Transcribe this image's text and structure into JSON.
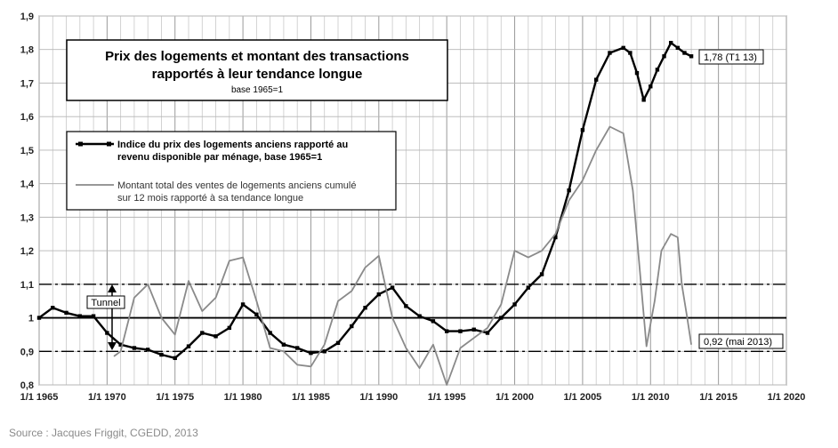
{
  "chart_data": {
    "type": "line",
    "title_line1": "Prix des logements et montant des transactions",
    "title_line2": "rapportés à leur tendance longue",
    "subtitle": "base 1965=1",
    "xlabel": "",
    "ylabel": "",
    "xlim": [
      1965,
      2020
    ],
    "ylim": [
      0.8,
      1.9
    ],
    "grid": true,
    "legend_position": "top-left",
    "x_ticks": [
      "1/1 1965",
      "1/1 1970",
      "1/1 1975",
      "1/1 1980",
      "1/1 1985",
      "1/1 1990",
      "1/1 1995",
      "1/1 2000",
      "1/1 2005",
      "1/1 2010",
      "1/1 2015",
      "1/1 2020"
    ],
    "y_ticks": [
      "0,8",
      "0,9",
      "1",
      "1,1",
      "1,2",
      "1,3",
      "1,4",
      "1,5",
      "1,6",
      "1,7",
      "1,8",
      "1,9"
    ],
    "reference_lines": [
      {
        "y": 1.0,
        "style": "solid"
      },
      {
        "y": 1.1,
        "style": "dash-dot"
      },
      {
        "y": 0.9,
        "style": "dash-dot"
      }
    ],
    "series": [
      {
        "name": "Indice du prix des logements anciens rapporté au revenu disponible par ménage, base 1965=1",
        "legend_line1": "Indice du prix des logements anciens rapporté au",
        "legend_line2": "revenu disponible par ménage, base 1965=1",
        "color": "#000000",
        "points": [
          [
            1965,
            1.0
          ],
          [
            1966,
            1.03
          ],
          [
            1967,
            1.015
          ],
          [
            1968,
            1.005
          ],
          [
            1969,
            1.005
          ],
          [
            1970,
            0.955
          ],
          [
            1971,
            0.92
          ],
          [
            1972,
            0.91
          ],
          [
            1973,
            0.905
          ],
          [
            1974,
            0.89
          ],
          [
            1975,
            0.88
          ],
          [
            1976,
            0.915
          ],
          [
            1977,
            0.955
          ],
          [
            1978,
            0.945
          ],
          [
            1979,
            0.97
          ],
          [
            1980,
            1.04
          ],
          [
            1981,
            1.01
          ],
          [
            1982,
            0.955
          ],
          [
            1983,
            0.92
          ],
          [
            1984,
            0.91
          ],
          [
            1985,
            0.895
          ],
          [
            1986,
            0.9
          ],
          [
            1987,
            0.925
          ],
          [
            1988,
            0.975
          ],
          [
            1989,
            1.03
          ],
          [
            1990,
            1.07
          ],
          [
            1991,
            1.09
          ],
          [
            1992,
            1.035
          ],
          [
            1993,
            1.005
          ],
          [
            1994,
            0.99
          ],
          [
            1995,
            0.96
          ],
          [
            1996,
            0.96
          ],
          [
            1997,
            0.965
          ],
          [
            1998,
            0.955
          ],
          [
            1999,
            1.0
          ],
          [
            2000,
            1.04
          ],
          [
            2001,
            1.09
          ],
          [
            2002,
            1.13
          ],
          [
            2003,
            1.24
          ],
          [
            2004,
            1.38
          ],
          [
            2005,
            1.56
          ],
          [
            2006,
            1.71
          ],
          [
            2007,
            1.79
          ],
          [
            2008,
            1.805
          ],
          [
            2008.5,
            1.79
          ],
          [
            2009,
            1.73
          ],
          [
            2009.5,
            1.65
          ],
          [
            2010,
            1.69
          ],
          [
            2010.5,
            1.74
          ],
          [
            2011,
            1.78
          ],
          [
            2011.5,
            1.82
          ],
          [
            2012,
            1.805
          ],
          [
            2012.5,
            1.79
          ],
          [
            2013,
            1.78
          ]
        ]
      },
      {
        "name": "Montant total des ventes de logements anciens cumulé sur 12 mois rapporté à sa tendance longue",
        "legend_line1": "Montant total des ventes de logements anciens cumulé",
        "legend_line2": "sur 12 mois rapporté à sa tendance longue",
        "color": "#8a8a8a",
        "points": [
          [
            1970.5,
            0.885
          ],
          [
            1971,
            0.9
          ],
          [
            1972,
            1.06
          ],
          [
            1973,
            1.1
          ],
          [
            1974,
            1.0
          ],
          [
            1975,
            0.95
          ],
          [
            1976,
            1.11
          ],
          [
            1977,
            1.02
          ],
          [
            1978,
            1.06
          ],
          [
            1979,
            1.17
          ],
          [
            1980,
            1.18
          ],
          [
            1981,
            1.05
          ],
          [
            1982,
            0.91
          ],
          [
            1983,
            0.9
          ],
          [
            1984,
            0.86
          ],
          [
            1985,
            0.855
          ],
          [
            1986,
            0.92
          ],
          [
            1987,
            1.05
          ],
          [
            1988,
            1.08
          ],
          [
            1989,
            1.15
          ],
          [
            1990,
            1.185
          ],
          [
            1991,
            1.0
          ],
          [
            1992,
            0.91
          ],
          [
            1993,
            0.85
          ],
          [
            1994,
            0.92
          ],
          [
            1995,
            0.8
          ],
          [
            1996,
            0.91
          ],
          [
            1997,
            0.94
          ],
          [
            1998,
            0.97
          ],
          [
            1999,
            1.04
          ],
          [
            2000,
            1.2
          ],
          [
            2001,
            1.18
          ],
          [
            2002,
            1.2
          ],
          [
            2003,
            1.25
          ],
          [
            2004,
            1.35
          ],
          [
            2005,
            1.41
          ],
          [
            2006,
            1.5
          ],
          [
            2007,
            1.57
          ],
          [
            2008,
            1.55
          ],
          [
            2008.7,
            1.38
          ],
          [
            2009.3,
            1.1
          ],
          [
            2009.7,
            0.915
          ],
          [
            2010.3,
            1.05
          ],
          [
            2010.8,
            1.2
          ],
          [
            2011.5,
            1.25
          ],
          [
            2012,
            1.24
          ],
          [
            2012.3,
            1.1
          ],
          [
            2012.7,
            1.0
          ],
          [
            2013,
            0.92
          ]
        ]
      }
    ],
    "annotations": {
      "tunnel": "Tunnel",
      "last_black": "1,78 (T1 13)",
      "last_grey": "0,92 (mai 2013)"
    }
  },
  "source": "Source : Jacques Friggit, CGEDD, 2013"
}
